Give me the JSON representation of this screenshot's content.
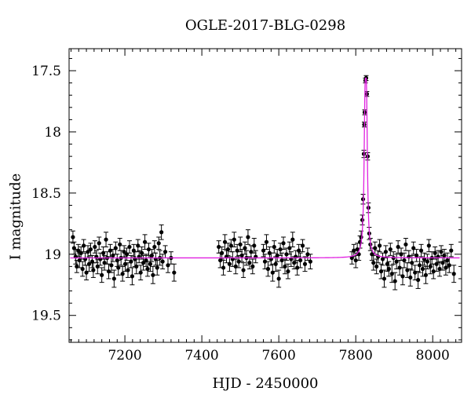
{
  "chart_data": {
    "type": "scatter",
    "title": "OGLE-2017-BLG-0298",
    "xlabel": "HJD - 2450000",
    "ylabel": "I magnitude",
    "xlim": [
      7055,
      8075
    ],
    "ylim": [
      19.72,
      17.32
    ],
    "y_inverted": true,
    "xticks_major": [
      7200,
      7400,
      7600,
      7800,
      8000
    ],
    "xtick_labels": [
      "7200",
      "7400",
      "7600",
      "7800",
      "8000"
    ],
    "yticks_major": [
      17.5,
      18,
      18.5,
      19,
      19.5
    ],
    "ytick_labels": [
      "17.5",
      "18",
      "18.5",
      "19",
      "19.5"
    ],
    "grid": false,
    "legend": "none",
    "colors": {
      "data": "#000000",
      "model": "#e020e0"
    },
    "series": [
      {
        "kind": "data-with-errorbars",
        "points": [
          [
            7065,
            18.86,
            0.05
          ],
          [
            7068,
            18.95,
            0.05
          ],
          [
            7072,
            19.02,
            0.06
          ],
          [
            7075,
            19.1,
            0.05
          ],
          [
            7079,
            18.97,
            0.05
          ],
          [
            7082,
            19.05,
            0.06
          ],
          [
            7086,
            18.99,
            0.05
          ],
          [
            7090,
            19.12,
            0.06
          ],
          [
            7093,
            18.93,
            0.05
          ],
          [
            7097,
            19.04,
            0.05
          ],
          [
            7100,
            19.15,
            0.06
          ],
          [
            7104,
            18.98,
            0.05
          ],
          [
            7107,
            19.08,
            0.06
          ],
          [
            7111,
            18.96,
            0.05
          ],
          [
            7115,
            19.06,
            0.05
          ],
          [
            7118,
            19.13,
            0.06
          ],
          [
            7122,
            18.94,
            0.05
          ],
          [
            7126,
            19.02,
            0.05
          ],
          [
            7129,
            19.1,
            0.06
          ],
          [
            7133,
            18.91,
            0.05
          ],
          [
            7136,
            19.04,
            0.05
          ],
          [
            7140,
            19.17,
            0.06
          ],
          [
            7144,
            18.99,
            0.05
          ],
          [
            7147,
            19.07,
            0.06
          ],
          [
            7151,
            18.88,
            0.06
          ],
          [
            7154,
            19.03,
            0.05
          ],
          [
            7158,
            19.14,
            0.06
          ],
          [
            7162,
            18.97,
            0.05
          ],
          [
            7165,
            19.09,
            0.06
          ],
          [
            7169,
            19.01,
            0.05
          ],
          [
            7172,
            19.2,
            0.07
          ],
          [
            7176,
            18.95,
            0.05
          ],
          [
            7180,
            19.05,
            0.05
          ],
          [
            7183,
            19.11,
            0.06
          ],
          [
            7187,
            18.92,
            0.05
          ],
          [
            7190,
            19.03,
            0.06
          ],
          [
            7194,
            19.16,
            0.06
          ],
          [
            7198,
            18.98,
            0.05
          ],
          [
            7201,
            19.08,
            0.06
          ],
          [
            7205,
            19.0,
            0.05
          ],
          [
            7208,
            19.13,
            0.06
          ],
          [
            7212,
            18.94,
            0.05
          ],
          [
            7216,
            19.06,
            0.05
          ],
          [
            7219,
            19.18,
            0.07
          ],
          [
            7223,
            18.97,
            0.05
          ],
          [
            7226,
            19.04,
            0.06
          ],
          [
            7230,
            19.1,
            0.06
          ],
          [
            7234,
            18.93,
            0.05
          ],
          [
            7237,
            19.02,
            0.05
          ],
          [
            7241,
            19.15,
            0.06
          ],
          [
            7244,
            18.99,
            0.05
          ],
          [
            7248,
            19.07,
            0.06
          ],
          [
            7252,
            18.9,
            0.06
          ],
          [
            7255,
            19.05,
            0.05
          ],
          [
            7259,
            19.12,
            0.06
          ],
          [
            7262,
            18.96,
            0.05
          ],
          [
            7266,
            19.08,
            0.06
          ],
          [
            7270,
            19.01,
            0.05
          ],
          [
            7273,
            19.17,
            0.07
          ],
          [
            7277,
            18.94,
            0.05
          ],
          [
            7280,
            19.04,
            0.05
          ],
          [
            7284,
            19.11,
            0.06
          ],
          [
            7288,
            18.91,
            0.05
          ],
          [
            7291,
            19.03,
            0.06
          ],
          [
            7295,
            18.82,
            0.06
          ],
          [
            7298,
            19.06,
            0.06
          ],
          [
            7305,
            18.98,
            0.05
          ],
          [
            7312,
            19.09,
            0.06
          ],
          [
            7320,
            19.03,
            0.05
          ],
          [
            7328,
            19.15,
            0.07
          ],
          [
            7444,
            18.94,
            0.05
          ],
          [
            7448,
            19.05,
            0.06
          ],
          [
            7452,
            18.99,
            0.05
          ],
          [
            7456,
            19.11,
            0.06
          ],
          [
            7460,
            18.9,
            0.06
          ],
          [
            7464,
            19.02,
            0.05
          ],
          [
            7468,
            18.96,
            0.05
          ],
          [
            7472,
            19.08,
            0.06
          ],
          [
            7476,
            18.93,
            0.05
          ],
          [
            7480,
            19.04,
            0.06
          ],
          [
            7484,
            18.88,
            0.06
          ],
          [
            7488,
            19.1,
            0.06
          ],
          [
            7492,
            18.97,
            0.05
          ],
          [
            7496,
            19.06,
            0.05
          ],
          [
            7500,
            18.92,
            0.06
          ],
          [
            7504,
            19.01,
            0.05
          ],
          [
            7508,
            19.13,
            0.06
          ],
          [
            7512,
            18.95,
            0.05
          ],
          [
            7516,
            19.03,
            0.06
          ],
          [
            7520,
            18.86,
            0.06
          ],
          [
            7524,
            19.07,
            0.05
          ],
          [
            7528,
            18.98,
            0.05
          ],
          [
            7532,
            19.1,
            0.06
          ],
          [
            7536,
            18.93,
            0.06
          ],
          [
            7540,
            19.02,
            0.05
          ],
          [
            7560,
            18.97,
            0.05
          ],
          [
            7564,
            19.06,
            0.06
          ],
          [
            7568,
            18.9,
            0.06
          ],
          [
            7572,
            19.12,
            0.06
          ],
          [
            7576,
            18.99,
            0.05
          ],
          [
            7580,
            19.04,
            0.05
          ],
          [
            7584,
            19.15,
            0.07
          ],
          [
            7588,
            18.94,
            0.05
          ],
          [
            7592,
            19.08,
            0.06
          ],
          [
            7596,
            19.01,
            0.05
          ],
          [
            7600,
            19.2,
            0.07
          ],
          [
            7604,
            18.96,
            0.05
          ],
          [
            7608,
            19.05,
            0.06
          ],
          [
            7612,
            18.91,
            0.05
          ],
          [
            7616,
            19.1,
            0.06
          ],
          [
            7620,
            19.0,
            0.05
          ],
          [
            7624,
            19.14,
            0.06
          ],
          [
            7628,
            18.95,
            0.05
          ],
          [
            7632,
            19.04,
            0.06
          ],
          [
            7636,
            18.88,
            0.06
          ],
          [
            7640,
            19.07,
            0.05
          ],
          [
            7644,
            19.02,
            0.05
          ],
          [
            7648,
            19.11,
            0.06
          ],
          [
            7652,
            18.97,
            0.05
          ],
          [
            7656,
            19.05,
            0.06
          ],
          [
            7662,
            18.93,
            0.05
          ],
          [
            7668,
            19.08,
            0.06
          ],
          [
            7675,
            19.0,
            0.05
          ],
          [
            7682,
            19.06,
            0.06
          ],
          [
            7790,
            19.03,
            0.05
          ],
          [
            7795,
            18.97,
            0.05
          ],
          [
            7800,
            19.05,
            0.06
          ],
          [
            7804,
            18.96,
            0.05
          ],
          [
            7808,
            19.0,
            0.05
          ],
          [
            7811,
            18.9,
            0.05
          ],
          [
            7814,
            18.86,
            0.05
          ],
          [
            7817,
            18.72,
            0.04
          ],
          [
            7819,
            18.55,
            0.04
          ],
          [
            7821,
            18.18,
            0.03
          ],
          [
            7822,
            17.94,
            0.02
          ],
          [
            7823,
            17.84,
            0.02
          ],
          [
            7825,
            17.58,
            0.02
          ],
          [
            7827,
            17.56,
            0.02
          ],
          [
            7829,
            17.69,
            0.02
          ],
          [
            7831,
            18.2,
            0.03
          ],
          [
            7833,
            18.62,
            0.04
          ],
          [
            7835,
            18.83,
            0.05
          ],
          [
            7838,
            18.92,
            0.05
          ],
          [
            7842,
            19.0,
            0.05
          ],
          [
            7846,
            19.07,
            0.06
          ],
          [
            7850,
            18.95,
            0.05
          ],
          [
            7854,
            19.1,
            0.06
          ],
          [
            7858,
            19.02,
            0.05
          ],
          [
            7862,
            18.93,
            0.05
          ],
          [
            7866,
            19.14,
            0.06
          ],
          [
            7870,
            19.04,
            0.05
          ],
          [
            7874,
            19.2,
            0.07
          ],
          [
            7878,
            18.98,
            0.05
          ],
          [
            7882,
            19.08,
            0.06
          ],
          [
            7886,
            19.12,
            0.06
          ],
          [
            7890,
            18.96,
            0.05
          ],
          [
            7894,
            19.16,
            0.07
          ],
          [
            7898,
            19.03,
            0.05
          ],
          [
            7902,
            19.22,
            0.07
          ],
          [
            7906,
            19.06,
            0.06
          ],
          [
            7910,
            18.94,
            0.05
          ],
          [
            7914,
            19.11,
            0.06
          ],
          [
            7918,
            19.0,
            0.05
          ],
          [
            7922,
            19.18,
            0.07
          ],
          [
            7926,
            19.05,
            0.06
          ],
          [
            7930,
            18.92,
            0.05
          ],
          [
            7934,
            19.13,
            0.06
          ],
          [
            7938,
            19.02,
            0.05
          ],
          [
            7942,
            19.19,
            0.07
          ],
          [
            7946,
            19.07,
            0.06
          ],
          [
            7950,
            18.95,
            0.05
          ],
          [
            7954,
            19.15,
            0.06
          ],
          [
            7958,
            19.01,
            0.05
          ],
          [
            7962,
            19.21,
            0.07
          ],
          [
            7966,
            19.09,
            0.06
          ],
          [
            7970,
            18.97,
            0.05
          ],
          [
            7974,
            19.12,
            0.06
          ],
          [
            7978,
            19.04,
            0.05
          ],
          [
            7982,
            19.17,
            0.07
          ],
          [
            7986,
            19.06,
            0.06
          ],
          [
            7990,
            18.93,
            0.05
          ],
          [
            7994,
            19.1,
            0.06
          ],
          [
            7998,
            19.03,
            0.05
          ],
          [
            8002,
            19.14,
            0.06
          ],
          [
            8006,
            18.99,
            0.05
          ],
          [
            8010,
            19.08,
            0.06
          ],
          [
            8014,
            19.02,
            0.05
          ],
          [
            8018,
            19.12,
            0.06
          ],
          [
            8022,
            18.98,
            0.05
          ],
          [
            8026,
            19.07,
            0.06
          ],
          [
            8030,
            19.01,
            0.05
          ],
          [
            8034,
            19.11,
            0.06
          ],
          [
            8038,
            19.05,
            0.06
          ],
          [
            8043,
            19.09,
            0.06
          ],
          [
            8048,
            18.97,
            0.05
          ],
          [
            8055,
            19.16,
            0.07
          ]
        ]
      },
      {
        "kind": "model-curve",
        "baseline": 19.03,
        "peak_x": 7826,
        "peak_y": 17.56,
        "width_days": 5.5
      }
    ]
  }
}
